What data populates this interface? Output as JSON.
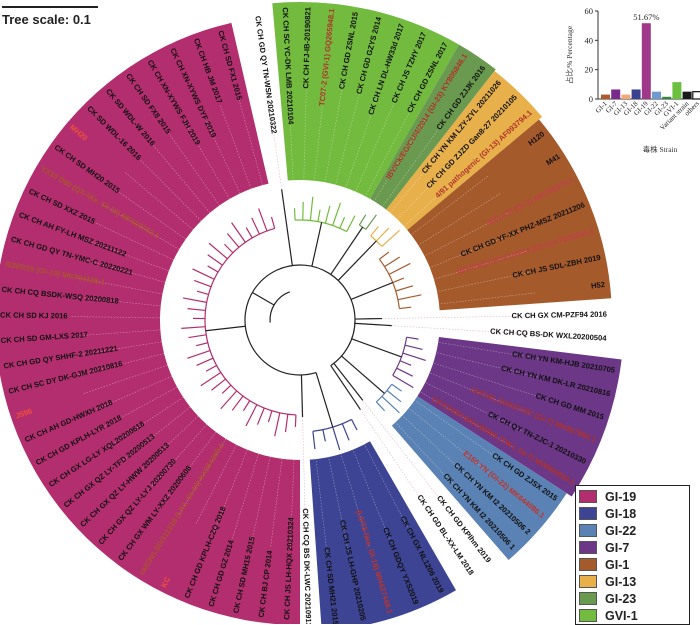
{
  "scale": {
    "label": "Tree scale: 0.1"
  },
  "tree": {
    "clades": [
      {
        "name": "GI-19",
        "color": "#b32e6e",
        "leaves": [
          {
            "label": "CK CH JS LH-HQX 20210324"
          },
          {
            "label": "CK CH BJ CP 2014"
          },
          {
            "label": "CK CH SD MH15 2015"
          },
          {
            "label": "CK CH GD GZ 2014"
          },
          {
            "label": "CK CH GD KPLH-CZQ 2018"
          },
          {
            "label": "KC",
            "color": "#f0503a"
          },
          {
            "label": "ck/CH/LSD/111218 (LX4, GI-19) KX364350.1",
            "color": "#a8552e"
          },
          {
            "label": "CK CH GX WM LY-XXZ 20200608"
          },
          {
            "label": "CK CH GX QZ LY-LYJ 20200730"
          },
          {
            "label": "CK CH GX QZ LY-HWW 20200513"
          },
          {
            "label": "CK CH GX QZ LY-TFD 20200513"
          },
          {
            "label": "CK CH GX LG-LY XQL20200618"
          },
          {
            "label": "CK CH GD KPLH-LYR 2018"
          },
          {
            "label": "CK CH AH GD-HWXH 2018"
          },
          {
            "label": "J596",
            "color": "#f0503a"
          },
          {
            "label": "CK CH SC DY DK-GJM 20210816"
          },
          {
            "label": "CK CH GD QY SHHF-2 20211221"
          },
          {
            "label": "CK CH SD GM-LXS 2017"
          },
          {
            "label": "CK CH SD KJ 2016"
          },
          {
            "label": "CK CH CQ BSDK-WSQ 20200818"
          },
          {
            "label": "I0305/19 (GI-19) MN794188.1",
            "color": "#a8552e"
          },
          {
            "label": "CK CH GD QY TN-YMC-C 20220221"
          },
          {
            "label": "CK CH AH FY-LH MSZ 20211122"
          },
          {
            "label": "CK CH SD XXZ 2015"
          },
          {
            "label": "YX10 D90 (QX-like, GI-19) MF508703.1",
            "color": "#a8552e"
          },
          {
            "label": "CK CH SD MH20 2015"
          },
          {
            "label": "MH20",
            "color": "#f0503a"
          },
          {
            "label": "CK SD WDL-16 2016"
          },
          {
            "label": "CK SD WDL-W 2016"
          },
          {
            "label": "CK CH SD FX8 2015"
          },
          {
            "label": "CK CH XN-XYWS FJH 2019"
          },
          {
            "label": "CK CH XN-XYWS DYF 2019"
          },
          {
            "label": "CK CH HB JM 2017"
          },
          {
            "label": "CK CH SD FX1 2015"
          }
        ]
      },
      {
        "name": "",
        "color": "#222222",
        "leaves": [
          {
            "label": "CK CH GD QY TN-WSN 20210322"
          }
        ]
      },
      {
        "name": "GVI-1",
        "color": "#72bb3e",
        "leaves": [
          {
            "label": "CK CH SC YC-DK LMB 20210104"
          },
          {
            "label": "CK CH FJ-IB-20190821"
          },
          {
            "label": "TC07-2 (GVI-1) GQ265948.1",
            "color": "#b0322a"
          },
          {
            "label": "CK CH GD ZSNL 2015"
          },
          {
            "label": "CK CH GD GZYS 2014"
          },
          {
            "label": "CK CH LN DL-HW33d 2017"
          },
          {
            "label": "CK CH JS TZHY 2017"
          },
          {
            "label": "CK CH GD ZSNL 2017"
          }
        ]
      },
      {
        "name": "GI-23",
        "color": "#6a9a50",
        "leaves": [
          {
            "label": "IBV/Ck/EG/CU/4/2014 (GI-23) KY805846.1",
            "color": "#b0322a"
          },
          {
            "label": "CK CH GD ZJJK 2016"
          }
        ]
      },
      {
        "name": "GI-13",
        "color": "#e8b04a",
        "leaves": [
          {
            "label": "CK CH YN KM LZY-ZYL 20211026"
          },
          {
            "label": "CK CH GD ZJZD Gan8-27 20210105"
          },
          {
            "label": "4/91 pathogenic (GI-13) AF093794.1",
            "color": "#b0322a"
          }
        ]
      },
      {
        "name": "GI-1",
        "color": "#a55a2c",
        "leaves": [
          {
            "label": "H120"
          },
          {
            "label": "M41"
          },
          {
            "label": "M41-CK (GI-1) MK728875.1",
            "color": "#c0404a"
          },
          {
            "label": "CK CH GD YF-XX PHZ-MSZ 20211206"
          },
          {
            "label": "IBV/Ck/EG/CU/1/2014 (GI-1) KY805845.1",
            "color": "#c0404a"
          },
          {
            "label": "CK CH JS SDL-ZBH 2019"
          },
          {
            "label": "H52"
          }
        ]
      },
      {
        "name": "",
        "color": "#222222",
        "leaves": [
          {
            "label": "CK CH GX CM-PZF94 2016"
          }
        ]
      },
      {
        "name": "",
        "color": "#222222",
        "leaves": [
          {
            "label": "CK CH CQ BS-DK WXL20200504"
          }
        ]
      },
      {
        "name": "GI-7",
        "color": "#6b3786",
        "leaves": [
          {
            "label": "CK CH YN KM-HJB 20210705"
          },
          {
            "label": "CK CH YN KM DK-LR 20210816"
          },
          {
            "label": "CK CH GD MM 2015"
          },
          {
            "label": "ck/CH/LJX/2017/07 (GI-7) MN307884.1",
            "color": "#b0322a"
          },
          {
            "label": "CK CH QY TN-ZJC-1 20210330"
          },
          {
            "label": "CK/CH/SCGH/190505 (TW I, GI-7) MW560830.1",
            "color": "#b0322a"
          }
        ]
      },
      {
        "name": "GI-22",
        "color": "#5b82b4",
        "leaves": [
          {
            "label": "CK CH GD ZJSX 2015"
          },
          {
            "label": "E160 YN (GI-22) MK644086.1",
            "color": "#c0322a"
          },
          {
            "label": "CK CH YN KM I2 20210506 2"
          },
          {
            "label": "CK CH YN KM I2 20210506 1"
          }
        ]
      },
      {
        "name": "",
        "color": "#222222",
        "leaves": [
          {
            "label": "CK CH GD KPlhm 2019"
          }
        ]
      },
      {
        "name": "",
        "color": "#222222",
        "leaves": [
          {
            "label": "CK CH GD BL-XX-LM 2018"
          }
        ]
      },
      {
        "name": "GI-18",
        "color": "#3d4494",
        "leaves": [
          {
            "label": "CK CH GX NL1206 2019"
          },
          {
            "label": "CK CH GDQY YXS2019"
          },
          {
            "label": "(LDT3-like, GI-18) MH427448.1",
            "color": "#c0322a"
          },
          {
            "label": "CK CH JS LH-GHP 20210205"
          },
          {
            "label": "CK CH SD MH21 2015"
          }
        ]
      },
      {
        "name": "",
        "color": "#222222",
        "leaves": [
          {
            "label": "CK CH CQ BS DK-LWC 20210913"
          }
        ]
      }
    ]
  },
  "legend": [
    {
      "label": "GI-19",
      "color": "#b32e6e"
    },
    {
      "label": "GI-18",
      "color": "#3d4494"
    },
    {
      "label": "GI-22",
      "color": "#5b82b4"
    },
    {
      "label": "GI-7",
      "color": "#6b3786"
    },
    {
      "label": "GI-1",
      "color": "#a55a2c"
    },
    {
      "label": "GI-13",
      "color": "#e8b04a"
    },
    {
      "label": "GI-23",
      "color": "#6a9a50"
    },
    {
      "label": "GVI-1",
      "color": "#72bb3e"
    }
  ],
  "chart_data": {
    "type": "bar",
    "categories": [
      "GI-1",
      "GI-7",
      "GI-13",
      "GI-18",
      "GI-19",
      "GI-22",
      "GI-23",
      "GVI-1",
      "Variant strain",
      "others"
    ],
    "values": [
      3,
      6.5,
      3,
      6.5,
      51.67,
      5,
      1.5,
      11.5,
      5,
      5
    ],
    "colors": [
      "#b0592a",
      "#7a2a8a",
      "#f0a878",
      "#3a3f8f",
      "#a0388a",
      "#6f9ad0",
      "#2e8a3a",
      "#6cc040",
      "#1a1a1a",
      "#ffffff"
    ],
    "data_label": "51.67%",
    "ylabel": "占比/% Percentage",
    "xlabel": "毒株 Strain",
    "ylim": [
      0,
      60
    ],
    "yticks": [
      "0",
      "20",
      "40",
      "60"
    ],
    "grid": false
  }
}
